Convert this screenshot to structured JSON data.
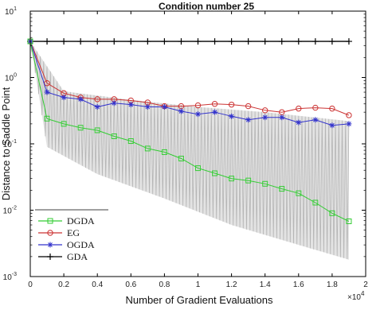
{
  "chart_data": {
    "type": "line",
    "title": "Condition number 25",
    "xlabel": "Number of Gradient Evaluations",
    "ylabel": "Distance to Saddle Point",
    "x_exponent_label": "×10",
    "x_exponent_power": "4",
    "xlim": [
      0,
      20000
    ],
    "ylim": [
      0.001,
      10
    ],
    "yscale": "log",
    "xticks": [
      0,
      2000,
      4000,
      6000,
      8000,
      10000,
      12000,
      14000,
      16000,
      18000,
      20000
    ],
    "xtick_labels": [
      "0",
      "0.2",
      "0.4",
      "0.6",
      "0.8",
      "1",
      "1.2",
      "1.4",
      "1.6",
      "1.8",
      "2"
    ],
    "ytick_values": [
      0.001,
      0.01,
      0.1,
      1,
      10
    ],
    "ytick_bases": [
      "10",
      "10",
      "10",
      "10",
      "10"
    ],
    "ytick_exponents": [
      "-3",
      "-2",
      "-1",
      "0",
      "1"
    ],
    "grid": false,
    "legend_position": "bottom-left",
    "background_band": {
      "color": "#cccccc",
      "upper": [
        [
          0,
          3.5
        ],
        [
          2000,
          0.62
        ],
        [
          6000,
          0.46
        ],
        [
          10000,
          0.36
        ],
        [
          14000,
          0.3
        ],
        [
          19000,
          0.22
        ]
      ],
      "lower": [
        [
          0,
          3.5
        ],
        [
          1000,
          0.09
        ],
        [
          4000,
          0.035
        ],
        [
          8000,
          0.015
        ],
        [
          12000,
          0.006
        ],
        [
          16000,
          0.003
        ],
        [
          19000,
          0.0018
        ]
      ]
    },
    "series": [
      {
        "name": "DGDA",
        "color": "#33cc33",
        "marker": "square",
        "x": [
          0,
          1000,
          2000,
          3000,
          4000,
          5000,
          6000,
          7000,
          8000,
          9000,
          10000,
          11000,
          12000,
          13000,
          14000,
          15000,
          16000,
          17000,
          18000,
          19000
        ],
        "y": [
          3.5,
          0.24,
          0.2,
          0.175,
          0.16,
          0.13,
          0.11,
          0.085,
          0.075,
          0.06,
          0.043,
          0.036,
          0.03,
          0.028,
          0.025,
          0.021,
          0.018,
          0.013,
          0.009,
          0.0068
        ]
      },
      {
        "name": "EG",
        "color": "#cc3333",
        "marker": "circle",
        "x": [
          0,
          1000,
          2000,
          3000,
          4000,
          5000,
          6000,
          7000,
          8000,
          9000,
          10000,
          11000,
          12000,
          13000,
          14000,
          15000,
          16000,
          17000,
          18000,
          19000
        ],
        "y": [
          3.5,
          0.82,
          0.58,
          0.5,
          0.47,
          0.47,
          0.45,
          0.42,
          0.37,
          0.37,
          0.38,
          0.4,
          0.39,
          0.37,
          0.32,
          0.3,
          0.34,
          0.35,
          0.34,
          0.27
        ]
      },
      {
        "name": "OGDA",
        "color": "#3333cc",
        "marker": "star",
        "x": [
          0,
          1000,
          2000,
          3000,
          4000,
          5000,
          6000,
          7000,
          8000,
          9000,
          10000,
          11000,
          12000,
          13000,
          14000,
          15000,
          16000,
          17000,
          18000,
          19000
        ],
        "y": [
          3.5,
          0.6,
          0.5,
          0.47,
          0.36,
          0.41,
          0.39,
          0.36,
          0.36,
          0.31,
          0.28,
          0.3,
          0.26,
          0.23,
          0.25,
          0.25,
          0.21,
          0.23,
          0.19,
          0.2
        ]
      },
      {
        "name": "GDA",
        "color": "#000000",
        "marker": "plus",
        "x": [
          0,
          1000,
          2000,
          3000,
          4000,
          5000,
          6000,
          7000,
          8000,
          9000,
          10000,
          11000,
          12000,
          13000,
          14000,
          15000,
          16000,
          17000,
          18000,
          19000
        ],
        "y": [
          3.5,
          3.5,
          3.5,
          3.5,
          3.5,
          3.5,
          3.5,
          3.5,
          3.5,
          3.5,
          3.5,
          3.5,
          3.5,
          3.5,
          3.5,
          3.5,
          3.5,
          3.5,
          3.5,
          3.5
        ]
      }
    ]
  }
}
